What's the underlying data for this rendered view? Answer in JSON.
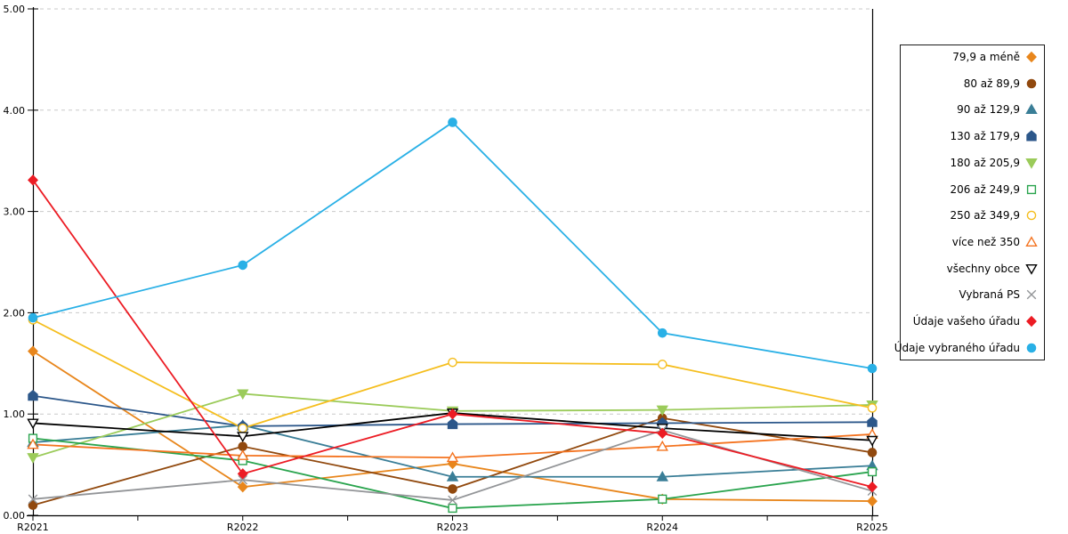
{
  "chart_data": {
    "type": "line",
    "title": "",
    "xlabel": "",
    "ylabel": "",
    "ylim": [
      0,
      5
    ],
    "grid": "horizontal-dashed",
    "legend_position": "right",
    "categories": [
      "R2021",
      "R2022",
      "R2023",
      "R2024",
      "R2025"
    ],
    "y_tick_labels": [
      "0.00",
      "1.00",
      "2.00",
      "3.00",
      "4.00",
      "5.00"
    ],
    "series": [
      {
        "name": "79,9 a méně",
        "color": "#E8861C",
        "marker": "diamond",
        "fill": "solid",
        "values": [
          1.62,
          0.28,
          0.51,
          0.16,
          0.14
        ]
      },
      {
        "name": "80 až 89,9",
        "color": "#91490E",
        "marker": "circle",
        "fill": "solid",
        "values": [
          0.1,
          0.68,
          0.26,
          0.96,
          0.62
        ]
      },
      {
        "name": "90 až 129,9",
        "color": "#3A7E97",
        "marker": "triangle-up",
        "fill": "solid",
        "values": [
          0.72,
          0.89,
          0.38,
          0.38,
          0.49
        ]
      },
      {
        "name": "130 až 179,9",
        "color": "#2C578A",
        "marker": "pentagon",
        "fill": "solid",
        "values": [
          1.18,
          0.88,
          0.9,
          0.91,
          0.92
        ]
      },
      {
        "name": "180 až 205,9",
        "color": "#9BCB5A",
        "marker": "triangle-down",
        "fill": "solid",
        "values": [
          0.57,
          1.2,
          1.03,
          1.04,
          1.09
        ]
      },
      {
        "name": "206 až 249,9",
        "color": "#2AA44E",
        "marker": "square",
        "fill": "open",
        "values": [
          0.76,
          0.54,
          0.07,
          0.16,
          0.43
        ]
      },
      {
        "name": "250 až 349,9",
        "color": "#F5BE1E",
        "marker": "circle",
        "fill": "open",
        "values": [
          1.93,
          0.86,
          1.51,
          1.49,
          1.06
        ]
      },
      {
        "name": "více než 350",
        "color": "#F4731F",
        "marker": "triangle-up",
        "fill": "open",
        "values": [
          0.7,
          0.59,
          0.57,
          0.68,
          0.8
        ]
      },
      {
        "name": "všechny obce",
        "color": "#000000",
        "marker": "triangle-down",
        "fill": "open",
        "values": [
          0.91,
          0.78,
          1.01,
          0.86,
          0.74
        ]
      },
      {
        "name": "Vybraná PS",
        "color": "#939598",
        "marker": "x",
        "fill": "open",
        "values": [
          0.16,
          0.35,
          0.15,
          0.84,
          0.24
        ]
      },
      {
        "name": "Údaje vašeho úřadu",
        "color": "#EC1C24",
        "marker": "diamond",
        "fill": "solid",
        "values": [
          3.31,
          0.41,
          1.0,
          0.81,
          0.28
        ]
      },
      {
        "name": "Údaje vybraného úřadu",
        "color": "#29B0E6",
        "marker": "circle",
        "fill": "solid",
        "values": [
          1.95,
          2.47,
          3.88,
          1.8,
          1.45
        ]
      }
    ]
  }
}
